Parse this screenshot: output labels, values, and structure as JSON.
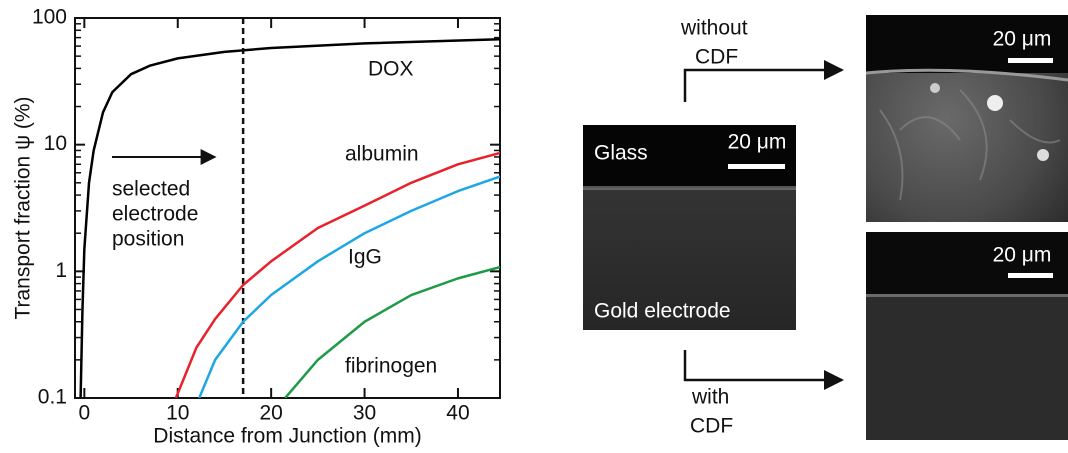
{
  "chart_data": {
    "type": "line",
    "y_label": "Transport fraction ψ (%)",
    "x_label": "Distance from Junction (mm)",
    "xlim": [
      -1,
      44.5
    ],
    "xticks": [
      0,
      10,
      20,
      30,
      40
    ],
    "ylim": [
      0.1,
      100
    ],
    "yticks": [
      0.1,
      1,
      10,
      100
    ],
    "y_scale": "log",
    "selected_x": 17,
    "annotation": [
      "selected",
      "electrode",
      "position"
    ],
    "series": [
      {
        "name": "DOX",
        "color": "#000000",
        "x": [
          -0.4,
          -0.2,
          0,
          0.5,
          1,
          2,
          3,
          5,
          7,
          10,
          15,
          20,
          30,
          44.5
        ],
        "values": [
          0.1,
          0.5,
          1.5,
          5,
          9,
          18,
          26,
          36,
          42,
          48,
          54,
          58,
          63,
          68
        ]
      },
      {
        "name": "albumin",
        "color": "#e8212b",
        "x": [
          9.8,
          12,
          14,
          17,
          20,
          25,
          30,
          35,
          40,
          44.5
        ],
        "values": [
          0.1,
          0.25,
          0.42,
          0.78,
          1.2,
          2.2,
          3.3,
          5,
          7,
          8.6
        ]
      },
      {
        "name": "IgG",
        "color": "#1ea6e6",
        "x": [
          12.3,
          14,
          17,
          20,
          25,
          30,
          35,
          40,
          44.5
        ],
        "values": [
          0.1,
          0.2,
          0.4,
          0.65,
          1.2,
          2,
          3,
          4.3,
          5.6
        ]
      },
      {
        "name": "fibrinogen",
        "color": "#1f9a47",
        "x": [
          21.5,
          25,
          30,
          35,
          40,
          44.5
        ],
        "values": [
          0.1,
          0.2,
          0.4,
          0.65,
          0.88,
          1.08
        ]
      }
    ]
  },
  "figure": {
    "center_panel": {
      "top_label": "Glass",
      "scale": "20 μm",
      "bottom_label": "Gold electrode"
    },
    "top_panel": {
      "caption": [
        "without",
        "CDF"
      ],
      "scale": "20 μm"
    },
    "bottom_panel": {
      "caption": [
        "with",
        "CDF"
      ],
      "scale": "20 μm"
    }
  }
}
